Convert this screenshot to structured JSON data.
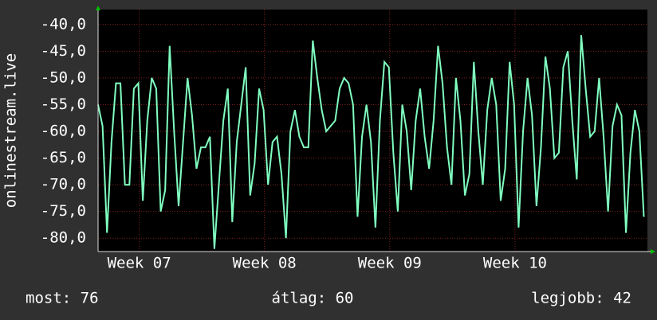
{
  "chart_data": {
    "type": "line",
    "y_label": "onlinestream.live",
    "x": [
      0,
      0.25,
      0.5,
      0.75,
      1,
      1.25,
      1.5,
      1.75,
      2,
      2.25,
      2.5,
      2.75,
      3,
      3.25,
      3.5,
      3.75,
      4,
      4.25,
      4.5,
      4.75,
      5,
      5.25,
      5.5,
      5.75,
      6,
      6.25,
      6.5,
      6.75,
      7,
      7.25,
      7.5,
      7.75,
      8,
      8.25,
      8.5,
      8.75,
      9,
      9.25,
      9.5,
      9.75,
      10,
      10.25,
      10.5,
      10.75,
      11,
      11.25,
      11.5,
      11.75,
      12,
      12.25,
      12.5,
      12.75,
      13,
      13.25,
      13.5,
      13.75,
      14,
      14.25,
      14.5,
      14.75,
      15,
      15.25,
      15.5,
      15.75,
      16,
      16.25,
      16.5,
      16.75,
      17,
      17.25,
      17.5,
      17.75,
      18,
      18.25,
      18.5,
      18.75,
      19,
      19.25,
      19.5,
      19.75,
      20,
      20.25,
      20.5,
      20.75,
      21,
      21.25,
      21.5,
      21.75,
      22,
      22.25,
      22.5,
      22.75,
      23,
      23.25,
      23.5,
      23.75,
      24,
      24.25,
      24.5,
      24.75,
      25,
      25.25,
      25.5,
      25.75,
      26,
      26.25,
      26.5,
      26.75,
      27,
      27.25,
      27.5,
      27.75,
      28,
      28.25,
      28.5,
      28.75,
      29,
      29.25,
      29.5,
      29.75,
      30,
      30.25,
      30.5
    ],
    "series": [
      {
        "name": "onlinestream.live",
        "color": "#80ffc0",
        "values": [
          -55,
          -59,
          -79,
          -62,
          -51,
          -51,
          -70,
          -70,
          -52,
          -51,
          -73,
          -58,
          -50,
          -52,
          -75,
          -71,
          -44,
          -60,
          -74,
          -62,
          -50,
          -57,
          -67,
          -63,
          -63,
          -61,
          -82,
          -70,
          -58,
          -52,
          -77,
          -62,
          -55,
          -48,
          -72,
          -66,
          -52,
          -56,
          -70,
          -62,
          -61,
          -68,
          -80,
          -60,
          -56,
          -61,
          -63,
          -63,
          -43,
          -50,
          -56,
          -60,
          -59,
          -58,
          -52,
          -50,
          -51,
          -55,
          -76,
          -61,
          -55,
          -62,
          -78,
          -58,
          -47,
          -48,
          -64,
          -75,
          -55,
          -60,
          -71,
          -58,
          -52,
          -61,
          -67,
          -58,
          -44,
          -51,
          -63,
          -70,
          -50,
          -58,
          -72,
          -68,
          -47,
          -60,
          -70,
          -56,
          -50,
          -55,
          -73,
          -67,
          -47,
          -55,
          -78,
          -60,
          -50,
          -57,
          -74,
          -63,
          -46,
          -52,
          -65,
          -64,
          -48,
          -45,
          -58,
          -69,
          -42,
          -52,
          -61,
          -60,
          -50,
          -61,
          -75,
          -59,
          -55,
          -57,
          -79,
          -64,
          -56,
          -60,
          -76
        ]
      }
    ],
    "xlim": [
      0,
      30.7
    ],
    "xticks": [
      {
        "value": 2.3,
        "label": "Week 07"
      },
      {
        "value": 9.3,
        "label": "Week 08"
      },
      {
        "value": 16.3,
        "label": "Week 09"
      },
      {
        "value": 23.3,
        "label": "Week 10"
      }
    ],
    "ylim": [
      -82.5,
      -37.2
    ],
    "yticks": [
      {
        "value": -40,
        "label": "-40,0"
      },
      {
        "value": -45,
        "label": "-45,0"
      },
      {
        "value": -50,
        "label": "-50,0"
      },
      {
        "value": -55,
        "label": "-55,0"
      },
      {
        "value": -60,
        "label": "-60,0"
      },
      {
        "value": -65,
        "label": "-65,0"
      },
      {
        "value": -70,
        "label": "-70,0"
      },
      {
        "value": -75,
        "label": "-75,0"
      },
      {
        "value": -80,
        "label": "-80,0"
      }
    ],
    "grid": true,
    "footer": [
      "most: 76",
      "átlag: 60",
      "legjobb: 42"
    ]
  }
}
